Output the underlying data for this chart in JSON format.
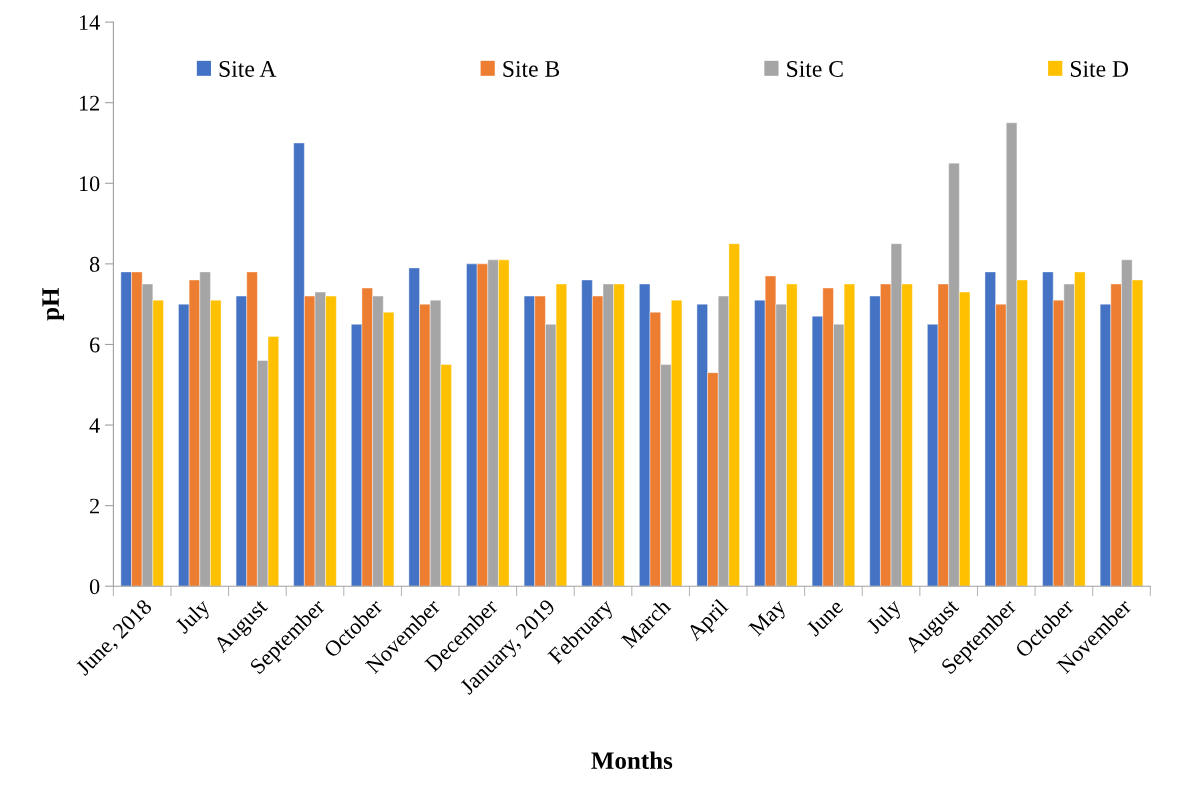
{
  "chart_data": {
    "type": "bar",
    "xlabel": "Months",
    "ylabel": "pH",
    "categories": [
      "June, 2018",
      "July",
      "August",
      "September",
      "October",
      "November",
      "December",
      "January, 2019",
      "February",
      "March",
      "April",
      "May",
      "June",
      "July",
      "August",
      "September",
      "October",
      "November"
    ],
    "series": [
      {
        "name": "Site A",
        "color": "#4472c4",
        "values": [
          7.8,
          7.0,
          7.2,
          11.0,
          6.5,
          7.9,
          8.0,
          7.2,
          7.6,
          7.5,
          7.0,
          7.1,
          6.7,
          7.2,
          6.5,
          7.8,
          7.8,
          7.0
        ]
      },
      {
        "name": "Site B",
        "color": "#ed7d31",
        "values": [
          7.8,
          7.6,
          7.8,
          7.2,
          7.4,
          7.0,
          8.0,
          7.2,
          7.2,
          6.8,
          5.3,
          7.7,
          7.4,
          7.5,
          7.5,
          7.0,
          7.1,
          7.5
        ]
      },
      {
        "name": "Site C",
        "color": "#a5a5a5",
        "values": [
          7.5,
          7.8,
          5.6,
          7.3,
          7.2,
          7.1,
          8.1,
          6.5,
          7.5,
          5.5,
          7.2,
          7.0,
          6.5,
          8.5,
          10.5,
          11.5,
          7.5,
          8.1
        ]
      },
      {
        "name": "Site D",
        "color": "#ffc000",
        "values": [
          7.1,
          7.1,
          6.2,
          7.2,
          6.8,
          5.5,
          8.1,
          7.5,
          7.5,
          7.1,
          8.5,
          7.5,
          7.5,
          7.5,
          7.3,
          7.6,
          7.8,
          7.6
        ]
      }
    ],
    "ylim": [
      0,
      14
    ],
    "yticks": [
      0,
      2,
      4,
      6,
      8,
      10,
      12,
      14
    ],
    "grid": false,
    "legend": "top"
  }
}
